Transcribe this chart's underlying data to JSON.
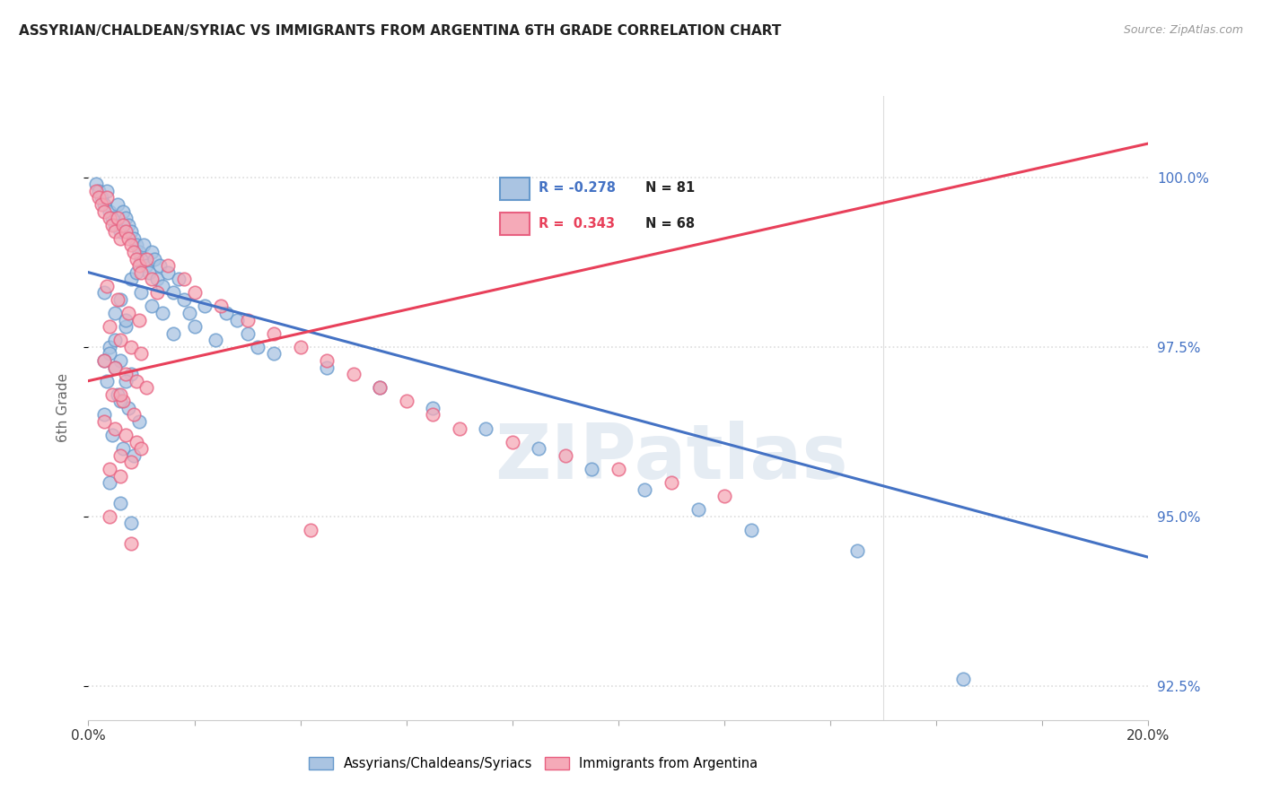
{
  "title": "ASSYRIAN/CHALDEAN/SYRIAC VS IMMIGRANTS FROM ARGENTINA 6TH GRADE CORRELATION CHART",
  "source_text": "Source: ZipAtlas.com",
  "ylabel": "6th Grade",
  "watermark": "ZIPatlas",
  "xlim": [
    0.0,
    20.0
  ],
  "ylim": [
    92.0,
    101.2
  ],
  "yticks": [
    92.5,
    95.0,
    97.5,
    100.0
  ],
  "ytick_labels": [
    "92.5%",
    "95.0%",
    "97.5%",
    "100.0%"
  ],
  "xticks": [
    0.0,
    2.0,
    4.0,
    6.0,
    8.0,
    10.0,
    12.0,
    14.0,
    16.0,
    18.0,
    20.0
  ],
  "xtick_labels": [
    "0.0%",
    "",
    "",
    "",
    "",
    "",
    "",
    "",
    "",
    "",
    "20.0%"
  ],
  "blue_label": "Assyrians/Chaldeans/Syriacs",
  "pink_label": "Immigrants from Argentina",
  "legend_R_blue": "R = -0.278",
  "legend_N_blue": "N = 81",
  "legend_R_pink": "R =  0.343",
  "legend_N_pink": "N = 68",
  "blue_color": "#aac4e2",
  "pink_color": "#f5aab8",
  "blue_edge_color": "#6699cc",
  "pink_edge_color": "#e86080",
  "blue_line_color": "#4472c4",
  "pink_line_color": "#e8405a",
  "dot_size": 110,
  "blue_scatter_x": [
    0.15,
    0.2,
    0.25,
    0.3,
    0.35,
    0.4,
    0.45,
    0.5,
    0.55,
    0.6,
    0.65,
    0.7,
    0.75,
    0.8,
    0.85,
    0.9,
    0.95,
    1.0,
    1.05,
    1.1,
    1.15,
    1.2,
    1.25,
    1.3,
    1.35,
    1.4,
    1.5,
    1.6,
    1.7,
    1.8,
    1.9,
    2.0,
    2.2,
    2.4,
    2.6,
    2.8,
    3.0,
    3.2,
    0.3,
    0.5,
    0.7,
    0.4,
    0.6,
    0.8,
    0.35,
    0.55,
    0.75,
    0.95,
    0.45,
    0.65,
    0.85,
    0.5,
    0.7,
    0.3,
    0.6,
    0.4,
    0.8,
    1.0,
    1.2,
    0.9,
    0.7,
    0.5,
    0.3,
    0.6,
    1.4,
    1.6,
    3.5,
    4.5,
    5.5,
    6.5,
    7.5,
    8.5,
    9.5,
    10.5,
    11.5,
    12.5,
    14.5,
    16.5,
    0.4,
    0.6,
    0.8
  ],
  "blue_scatter_y": [
    99.9,
    99.8,
    99.7,
    99.6,
    99.8,
    99.5,
    99.4,
    99.3,
    99.6,
    99.2,
    99.5,
    99.4,
    99.3,
    99.2,
    99.1,
    99.0,
    98.9,
    98.8,
    99.0,
    98.7,
    98.6,
    98.9,
    98.8,
    98.5,
    98.7,
    98.4,
    98.6,
    98.3,
    98.5,
    98.2,
    98.0,
    97.8,
    98.1,
    97.6,
    98.0,
    97.9,
    97.7,
    97.5,
    98.3,
    98.0,
    97.8,
    97.5,
    97.3,
    97.1,
    97.0,
    96.8,
    96.6,
    96.4,
    96.2,
    96.0,
    95.9,
    97.2,
    97.0,
    96.5,
    98.2,
    97.4,
    98.5,
    98.3,
    98.1,
    98.6,
    97.9,
    97.6,
    97.3,
    96.7,
    98.0,
    97.7,
    97.4,
    97.2,
    96.9,
    96.6,
    96.3,
    96.0,
    95.7,
    95.4,
    95.1,
    94.8,
    94.5,
    92.6,
    95.5,
    95.2,
    94.9
  ],
  "pink_scatter_x": [
    0.15,
    0.2,
    0.25,
    0.3,
    0.35,
    0.4,
    0.45,
    0.5,
    0.55,
    0.6,
    0.65,
    0.7,
    0.75,
    0.8,
    0.85,
    0.9,
    0.95,
    1.0,
    1.1,
    1.2,
    1.3,
    0.35,
    0.55,
    0.75,
    0.95,
    0.4,
    0.6,
    0.8,
    1.0,
    0.3,
    0.5,
    0.7,
    0.9,
    1.1,
    0.45,
    0.65,
    0.85,
    0.3,
    0.5,
    0.7,
    0.9,
    1.0,
    0.6,
    0.8,
    0.4,
    0.6,
    1.5,
    1.8,
    2.0,
    2.5,
    3.0,
    3.5,
    4.0,
    4.5,
    5.0,
    5.5,
    6.0,
    6.5,
    7.0,
    8.0,
    9.0,
    10.0,
    11.0,
    12.0,
    4.2,
    0.4,
    0.8,
    0.6
  ],
  "pink_scatter_y": [
    99.8,
    99.7,
    99.6,
    99.5,
    99.7,
    99.4,
    99.3,
    99.2,
    99.4,
    99.1,
    99.3,
    99.2,
    99.1,
    99.0,
    98.9,
    98.8,
    98.7,
    98.6,
    98.8,
    98.5,
    98.3,
    98.4,
    98.2,
    98.0,
    97.9,
    97.8,
    97.6,
    97.5,
    97.4,
    97.3,
    97.2,
    97.1,
    97.0,
    96.9,
    96.8,
    96.7,
    96.5,
    96.4,
    96.3,
    96.2,
    96.1,
    96.0,
    95.9,
    95.8,
    95.7,
    95.6,
    98.7,
    98.5,
    98.3,
    98.1,
    97.9,
    97.7,
    97.5,
    97.3,
    97.1,
    96.9,
    96.7,
    96.5,
    96.3,
    96.1,
    95.9,
    95.7,
    95.5,
    95.3,
    94.8,
    95.0,
    94.6,
    96.8
  ],
  "blue_trend_x": [
    0.0,
    20.0
  ],
  "blue_trend_y": [
    98.6,
    94.4
  ],
  "pink_trend_x": [
    0.0,
    20.0
  ],
  "pink_trend_y": [
    97.0,
    100.5
  ],
  "background_color": "#ffffff",
  "grid_color": "#dddddd",
  "right_axis_color": "#4472c4"
}
